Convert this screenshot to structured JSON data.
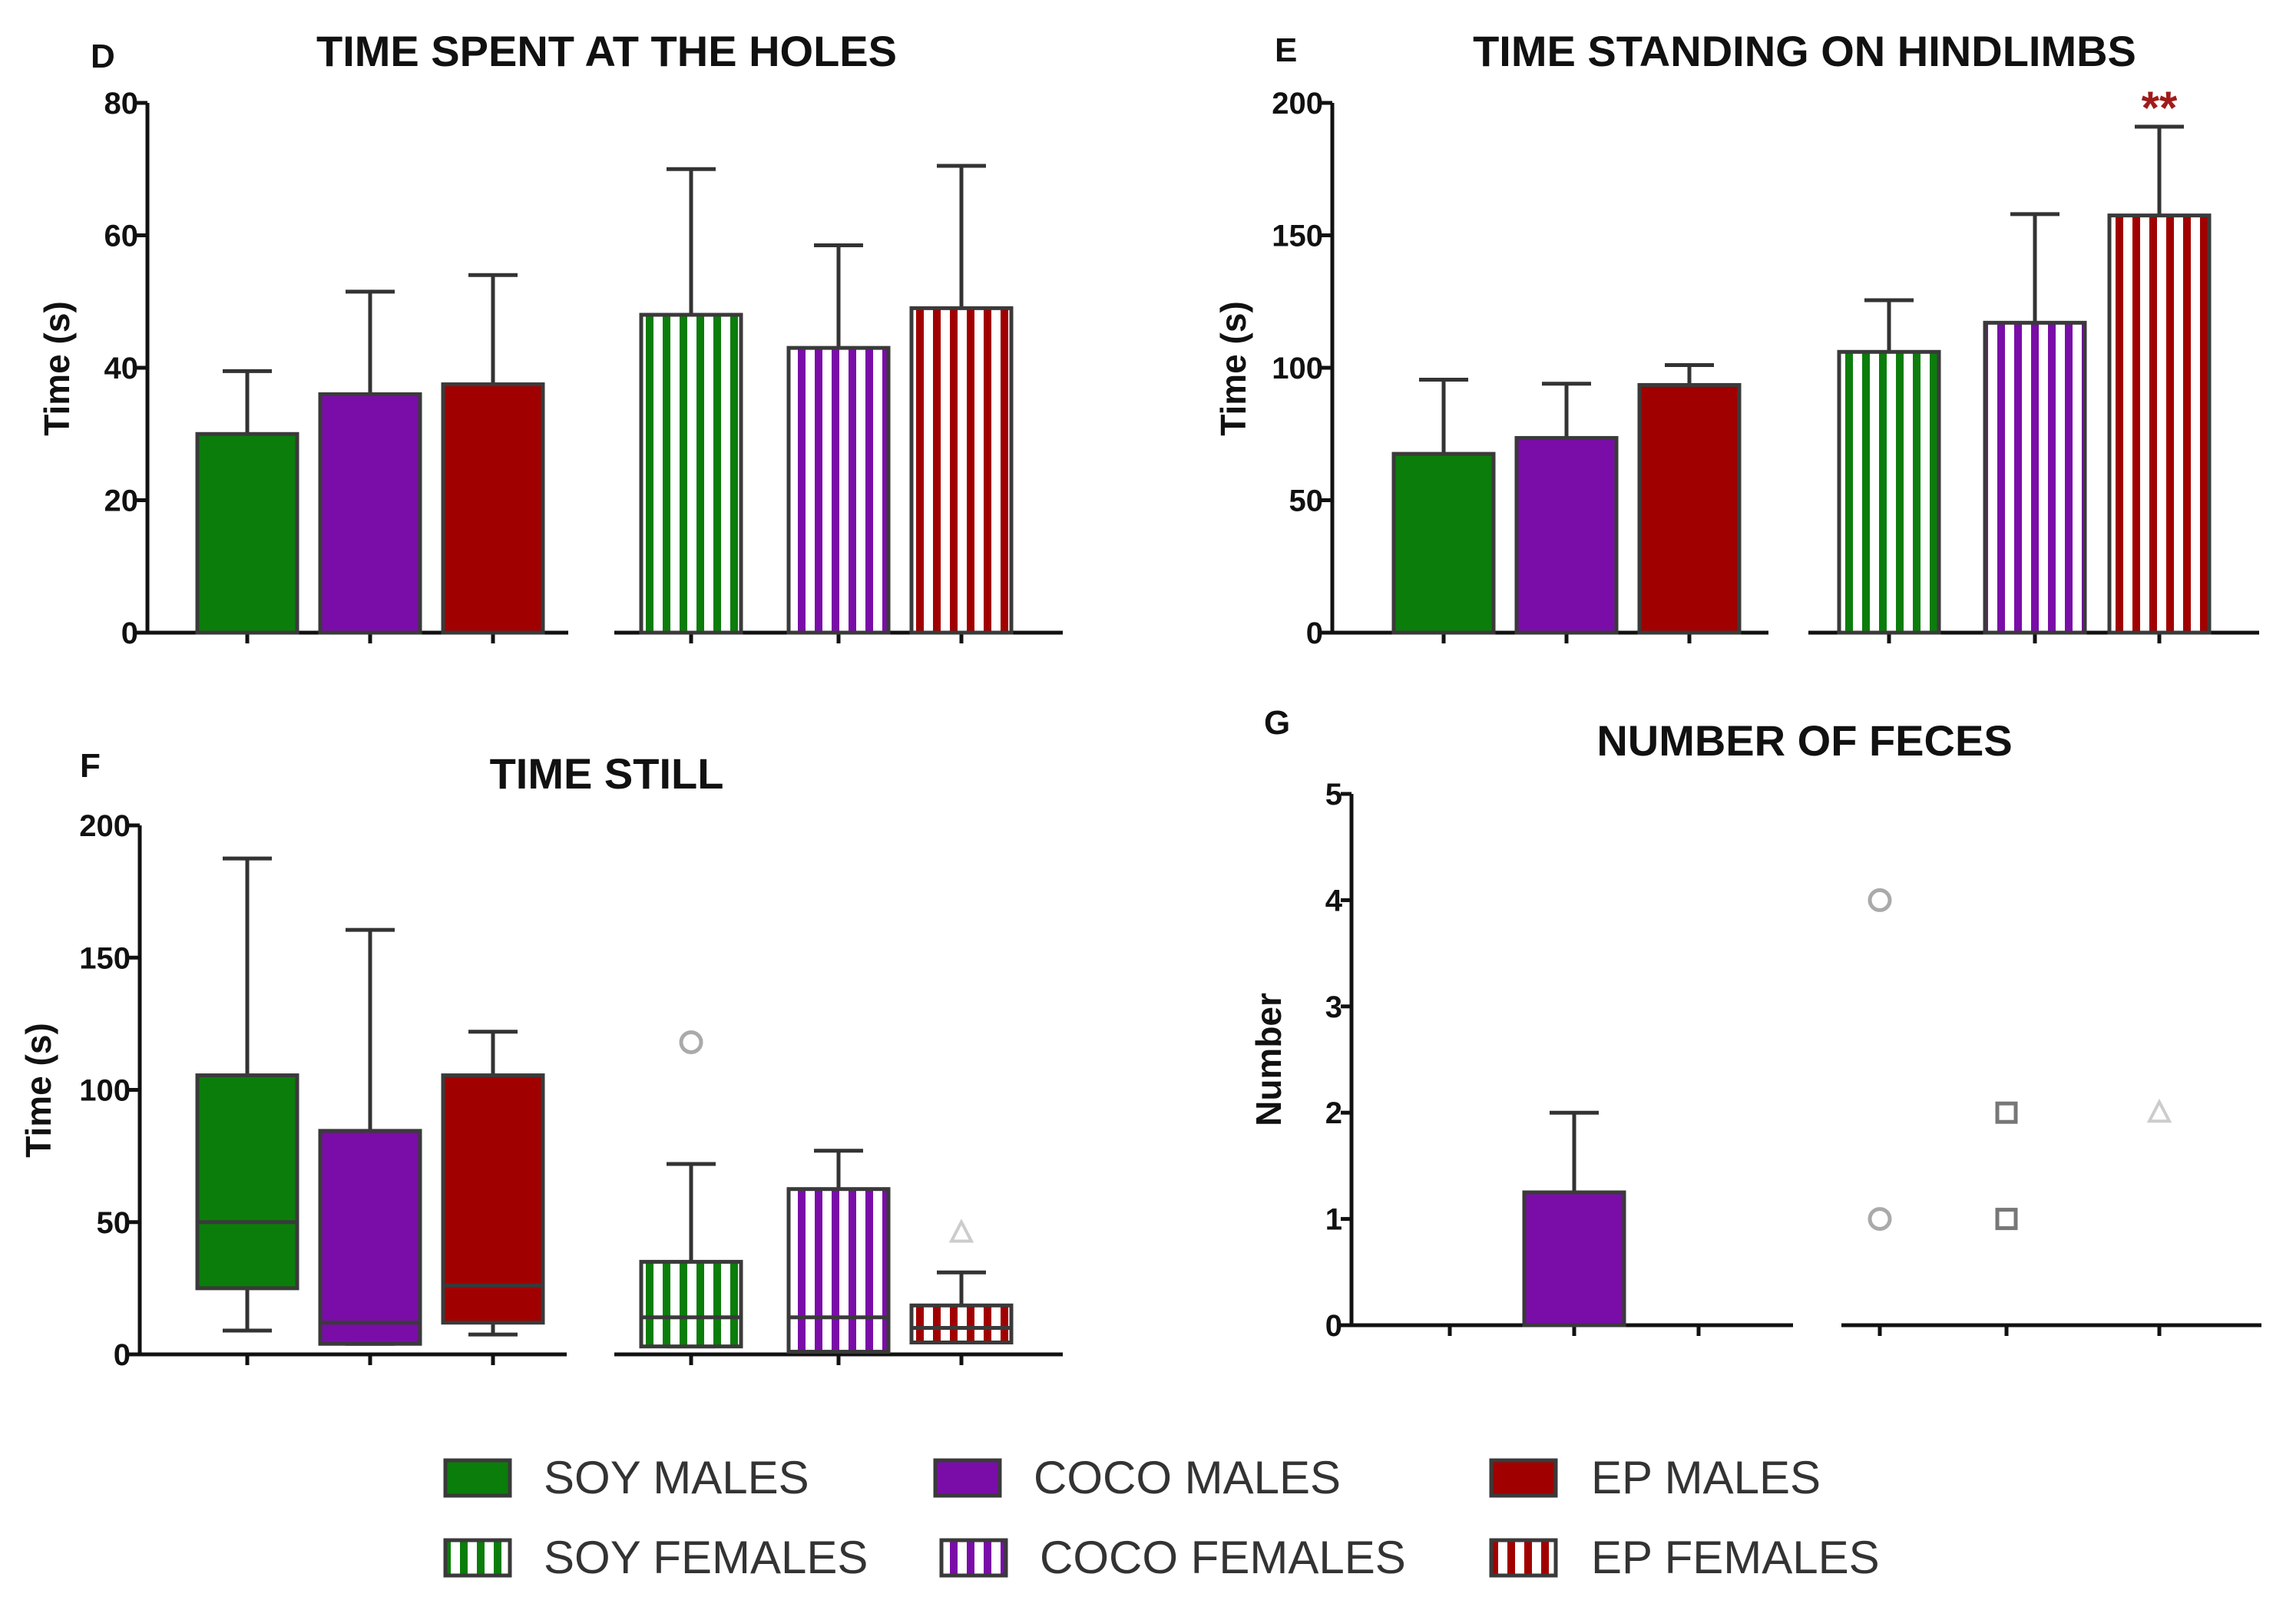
{
  "legend": [
    {
      "label": "SOY MALES",
      "color": "#0b7d0b",
      "pattern": "solid"
    },
    {
      "label": "COCO MALES",
      "color": "#7a0da8",
      "pattern": "solid"
    },
    {
      "label": "EP MALES",
      "color": "#a10000",
      "pattern": "solid"
    },
    {
      "label": "SOY FEMALES",
      "color": "#0b7d0b",
      "pattern": "striped"
    },
    {
      "label": "COCO FEMALES",
      "color": "#7a0da8",
      "pattern": "striped"
    },
    {
      "label": "EP FEMALES",
      "color": "#a10000",
      "pattern": "striped"
    }
  ],
  "significance_color": "#a11a1a",
  "outlier_color": "#aaaaaa",
  "chart_data": [
    {
      "panel": "D",
      "type": "bar",
      "title": "TIME SPENT AT THE HOLES",
      "ylabel": "Time  (s)",
      "ylim": [
        0,
        80
      ],
      "yticks": [
        "0",
        "20",
        "40",
        "60",
        "80"
      ],
      "groups": [
        "SOY MALES",
        "COCO MALES",
        "EP MALES",
        "SOY FEMALES",
        "COCO FEMALES",
        "EP FEMALES"
      ],
      "values": [
        30,
        36,
        37.5,
        48,
        43,
        49
      ],
      "error_upper": [
        39.5,
        51.5,
        54,
        70,
        58.5,
        70.5
      ]
    },
    {
      "panel": "E",
      "type": "bar",
      "title": "TIME STANDING ON HINDLIMBS",
      "ylabel": "Time  (s)",
      "ylim": [
        0,
        200
      ],
      "yticks": [
        "0",
        "50",
        "100",
        "150",
        "200"
      ],
      "groups": [
        "SOY MALES",
        "COCO MALES",
        "EP MALES",
        "SOY FEMALES",
        "COCO FEMALES",
        "EP FEMALES"
      ],
      "values": [
        67.5,
        73.5,
        93.5,
        106,
        117,
        157.5
      ],
      "error_upper": [
        95.5,
        94,
        101,
        125.5,
        158,
        191
      ],
      "annotations": [
        {
          "group": "EP FEMALES",
          "text": "**"
        }
      ]
    },
    {
      "panel": "F",
      "type": "box",
      "title": "TIME STILL",
      "ylabel": "Time  (s)",
      "ylim": [
        0,
        200
      ],
      "yticks": [
        "0",
        "50",
        "100",
        "150",
        "200"
      ],
      "groups": [
        "SOY MALES",
        "COCO MALES",
        "EP MALES",
        "SOY FEMALES",
        "COCO FEMALES",
        "EP FEMALES"
      ],
      "boxes": [
        {
          "min": 9,
          "q1": 25,
          "median": 50,
          "q3": 105.5,
          "max": 187.5
        },
        {
          "min": 4,
          "q1": 4,
          "median": 12,
          "q3": 84.5,
          "max": 160.5
        },
        {
          "min": 7.5,
          "q1": 12,
          "median": 26,
          "q3": 105.5,
          "max": 122
        },
        {
          "min": 3,
          "q1": 3,
          "median": 14,
          "q3": 35,
          "max": 72,
          "outliers": [
            {
              "value": 118,
              "marker": "circle"
            }
          ]
        },
        {
          "min": 1,
          "q1": 1,
          "median": 14,
          "q3": 62.5,
          "max": 77
        },
        {
          "min": 4.5,
          "q1": 4.5,
          "median": 10,
          "q3": 18.5,
          "max": 31,
          "outliers": [
            {
              "value": 46,
              "marker": "triangle"
            }
          ]
        }
      ]
    },
    {
      "panel": "G",
      "type": "bar",
      "title": "NUMBER OF FECES",
      "ylabel": "Number",
      "ylim": [
        0,
        5
      ],
      "yticks": [
        "0",
        "1",
        "2",
        "3",
        "4",
        "5"
      ],
      "groups": [
        "SOY MALES",
        "COCO MALES",
        "EP MALES",
        "SOY FEMALES",
        "COCO FEMALES",
        "EP FEMALES"
      ],
      "values": [
        0,
        1.25,
        0,
        0,
        0,
        0
      ],
      "error_upper": [
        null,
        2,
        null,
        null,
        null,
        null
      ],
      "outliers": [
        {
          "group": "SOY FEMALES",
          "value": 4,
          "marker": "circle"
        },
        {
          "group": "SOY FEMALES",
          "value": 1,
          "marker": "circle"
        },
        {
          "group": "COCO FEMALES",
          "value": 2,
          "marker": "square"
        },
        {
          "group": "COCO FEMALES",
          "value": 1,
          "marker": "square"
        },
        {
          "group": "EP FEMALES",
          "value": 2,
          "marker": "triangle"
        }
      ]
    }
  ]
}
